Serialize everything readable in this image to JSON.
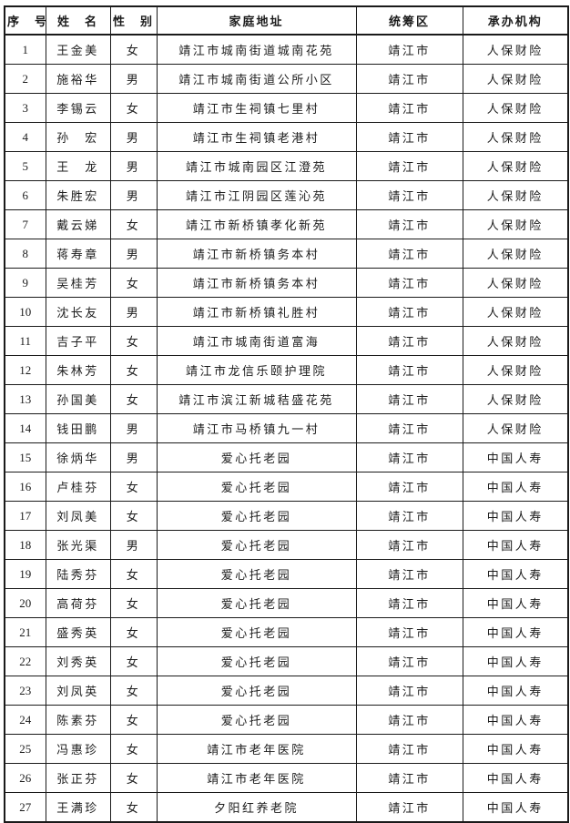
{
  "colors": {
    "background": "#ffffff",
    "text": "#1c1c1c",
    "border": "#1a1a1a"
  },
  "table": {
    "columns": [
      {
        "key": "index",
        "label": "序　号"
      },
      {
        "key": "name",
        "label": "姓　名"
      },
      {
        "key": "gender",
        "label": "性　别"
      },
      {
        "key": "address",
        "label": "家庭地址"
      },
      {
        "key": "region",
        "label": "统筹区"
      },
      {
        "key": "agency",
        "label": "承办机构"
      }
    ],
    "rows": [
      [
        "1",
        "王金美",
        "女",
        "靖江市城南街道城南花苑",
        "靖江市",
        "人保财险"
      ],
      [
        "2",
        "施裕华",
        "男",
        "靖江市城南街道公所小区",
        "靖江市",
        "人保财险"
      ],
      [
        "3",
        "李锡云",
        "女",
        "靖江市生祠镇七里村",
        "靖江市",
        "人保财险"
      ],
      [
        "4",
        "孙　宏",
        "男",
        "靖江市生祠镇老港村",
        "靖江市",
        "人保财险"
      ],
      [
        "5",
        "王　龙",
        "男",
        "靖江市城南园区江澄苑",
        "靖江市",
        "人保财险"
      ],
      [
        "6",
        "朱胜宏",
        "男",
        "靖江市江阴园区莲沁苑",
        "靖江市",
        "人保财险"
      ],
      [
        "7",
        "戴云娣",
        "女",
        "靖江市新桥镇孝化新苑",
        "靖江市",
        "人保财险"
      ],
      [
        "8",
        "蒋寿章",
        "男",
        "靖江市新桥镇务本村",
        "靖江市",
        "人保财险"
      ],
      [
        "9",
        "吴桂芳",
        "女",
        "靖江市新桥镇务本村",
        "靖江市",
        "人保财险"
      ],
      [
        "10",
        "沈长友",
        "男",
        "靖江市新桥镇礼胜村",
        "靖江市",
        "人保财险"
      ],
      [
        "11",
        "吉子平",
        "女",
        "靖江市城南街道富海",
        "靖江市",
        "人保财险"
      ],
      [
        "12",
        "朱林芳",
        "女",
        "靖江市龙信乐颐护理院",
        "靖江市",
        "人保财险"
      ],
      [
        "13",
        "孙国美",
        "女",
        "靖江市滨江新城秸盛花苑",
        "靖江市",
        "人保财险"
      ],
      [
        "14",
        "钱田鹏",
        "男",
        "靖江市马桥镇九一村",
        "靖江市",
        "人保财险"
      ],
      [
        "15",
        "徐炳华",
        "男",
        "爱心托老园",
        "靖江市",
        "中国人寿"
      ],
      [
        "16",
        "卢桂芬",
        "女",
        "爱心托老园",
        "靖江市",
        "中国人寿"
      ],
      [
        "17",
        "刘凤美",
        "女",
        "爱心托老园",
        "靖江市",
        "中国人寿"
      ],
      [
        "18",
        "张光渠",
        "男",
        "爱心托老园",
        "靖江市",
        "中国人寿"
      ],
      [
        "19",
        "陆秀芬",
        "女",
        "爱心托老园",
        "靖江市",
        "中国人寿"
      ],
      [
        "20",
        "高荷芬",
        "女",
        "爱心托老园",
        "靖江市",
        "中国人寿"
      ],
      [
        "21",
        "盛秀英",
        "女",
        "爱心托老园",
        "靖江市",
        "中国人寿"
      ],
      [
        "22",
        "刘秀英",
        "女",
        "爱心托老园",
        "靖江市",
        "中国人寿"
      ],
      [
        "23",
        "刘凤英",
        "女",
        "爱心托老园",
        "靖江市",
        "中国人寿"
      ],
      [
        "24",
        "陈素芬",
        "女",
        "爱心托老园",
        "靖江市",
        "中国人寿"
      ],
      [
        "25",
        "冯惠珍",
        "女",
        "靖江市老年医院",
        "靖江市",
        "中国人寿"
      ],
      [
        "26",
        "张正芬",
        "女",
        "靖江市老年医院",
        "靖江市",
        "中国人寿"
      ],
      [
        "27",
        "王满珍",
        "女",
        "夕阳红养老院",
        "靖江市",
        "中国人寿"
      ]
    ]
  }
}
